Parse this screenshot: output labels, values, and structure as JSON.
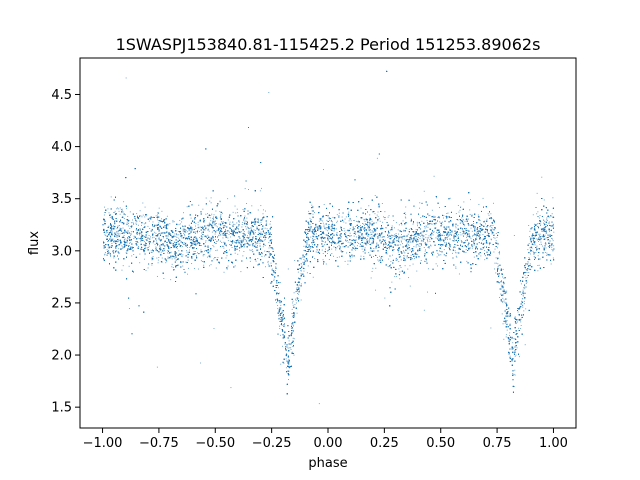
{
  "chart_data": {
    "type": "scatter",
    "title": "1SWASPJ153840.81-115425.2 Period 151253.89062s",
    "xlabel": "phase",
    "ylabel": "flux",
    "xlim": [
      -1.1,
      1.1
    ],
    "ylim": [
      1.3,
      4.85
    ],
    "xticks": [
      -1.0,
      -0.75,
      -0.5,
      -0.25,
      0.0,
      0.25,
      0.5,
      0.75,
      1.0
    ],
    "xtick_labels": [
      "−1.00",
      "−0.75",
      "−0.50",
      "−0.25",
      "0.00",
      "0.25",
      "0.50",
      "0.75",
      "1.00"
    ],
    "yticks": [
      1.5,
      2.0,
      2.5,
      3.0,
      3.5,
      4.0,
      4.5
    ],
    "ytick_labels": [
      "1.5",
      "2.0",
      "2.5",
      "3.0",
      "3.5",
      "4.0",
      "4.5"
    ],
    "grid": false,
    "point_color": "#1f77b4",
    "series_model": {
      "baseline_flux": 3.15,
      "scatter_sigma": 0.13,
      "primary_eclipse": {
        "phases": [
          -0.18,
          0.82
        ],
        "depth_to_flux": 1.95,
        "half_width": 0.09
      },
      "secondary_eclipse": {
        "phases": [
          -0.68,
          0.32
        ],
        "depth_to_flux": 3.02,
        "half_width": 0.07
      },
      "outlier_range": [
        1.45,
        4.75
      ],
      "n_points": 24000
    }
  }
}
